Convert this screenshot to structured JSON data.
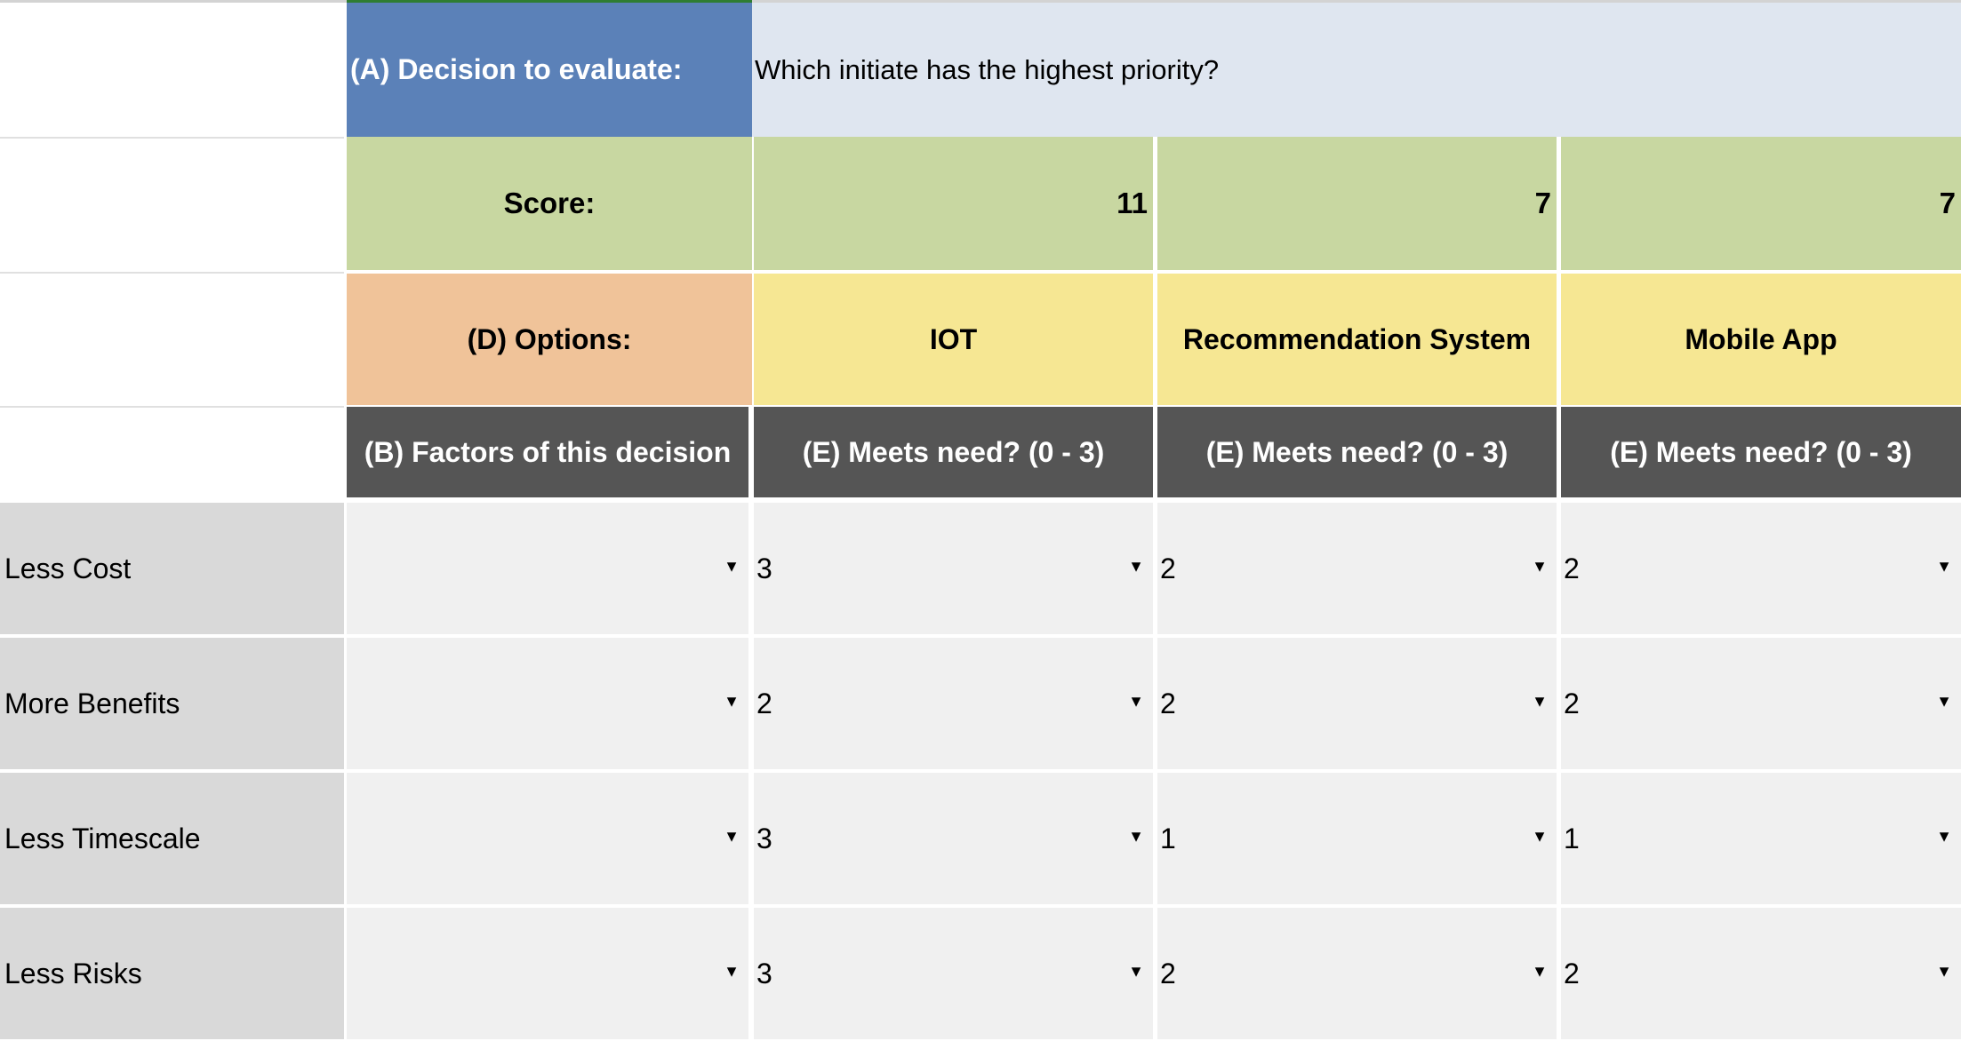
{
  "decision": {
    "label": "(A) Decision to evaluate:",
    "question": "Which initiate has the highest priority?"
  },
  "score": {
    "label": "Score:",
    "values": [
      "11",
      "7",
      "7"
    ]
  },
  "options": {
    "label": "(D) Options:",
    "names": [
      "IOT",
      "Recommendation System",
      "Mobile App"
    ]
  },
  "headers": {
    "factors": "(B) Factors of this decision",
    "meets_need": [
      "(E) Meets need? (0 - 3)",
      "(E) Meets need? (0 - 3)",
      "(E) Meets need? (0 - 3)"
    ]
  },
  "factors": [
    {
      "name": "Less Cost",
      "ratings": [
        "3",
        "2",
        "2"
      ]
    },
    {
      "name": "More Benefits",
      "ratings": [
        "2",
        "2",
        "2"
      ]
    },
    {
      "name": "Less Timescale",
      "ratings": [
        "3",
        "1",
        "1"
      ]
    },
    {
      "name": "Less Risks",
      "ratings": [
        "3",
        "2",
        "2"
      ]
    }
  ],
  "icons": {
    "dropdown": "dropdown-arrow-icon",
    "glyph": "▼"
  },
  "colors": {
    "decision_label_bg": "#5b81b8",
    "decision_value_bg": "#dfe6f0",
    "score_bg": "#c8d7a1",
    "options_label_bg": "#f0c399",
    "option_name_bg": "#f6e793",
    "header_bg": "#555555",
    "factor_bg": "#d9d9d9",
    "input_bg": "#f0f0f0"
  }
}
